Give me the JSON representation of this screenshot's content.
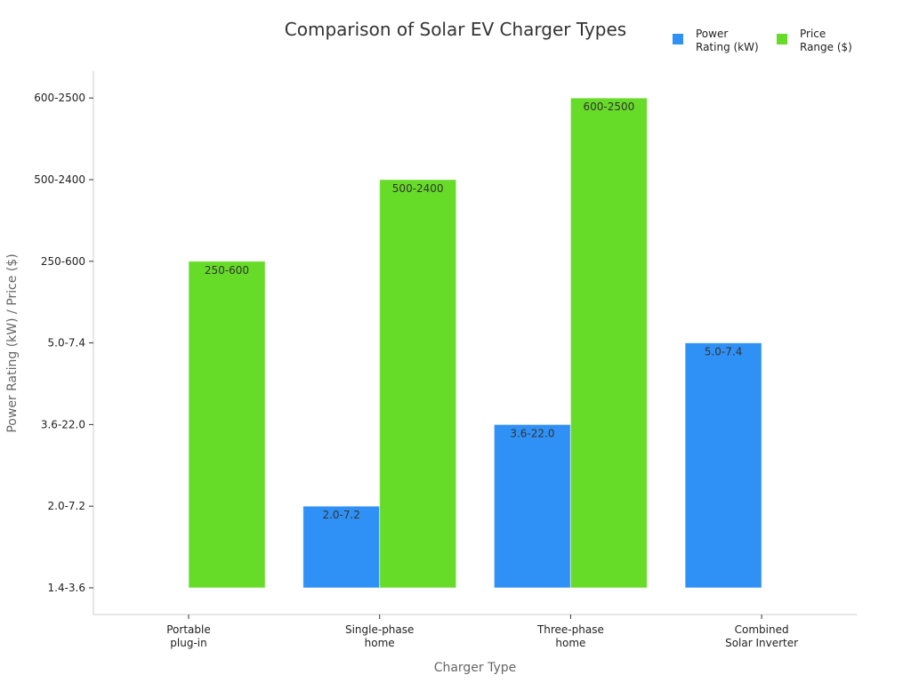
{
  "chart_data": {
    "type": "bar",
    "title": "Comparison of Solar EV Charger Types",
    "xlabel": "Charger Type",
    "ylabel": "Power Rating (kW) / Price ($)",
    "y_categories": [
      "1.4-3.6",
      "2.0-7.2",
      "3.6-22.0",
      "5.0-7.4",
      "250-600",
      "500-2400",
      "600-2500"
    ],
    "categories": [
      "Portable\nplug-in",
      "Single-phase\nhome",
      "Three-phase\nhome",
      "Combined\nSolar Inverter"
    ],
    "series": [
      {
        "name": "Power\nRating (kW)",
        "color": "#2F91F5",
        "values": [
          "1.4-3.6",
          "2.0-7.2",
          "3.6-22.0",
          "5.0-7.4"
        ]
      },
      {
        "name": "Price\nRange ($)",
        "color": "#66DB28",
        "values": [
          "250-600",
          "500-2400",
          "600-2500",
          null
        ]
      }
    ],
    "grid": false,
    "legend": "top-right"
  }
}
